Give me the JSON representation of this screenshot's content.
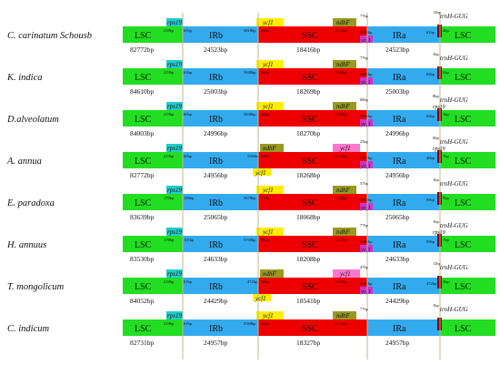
{
  "colors": {
    "lsc": "#22dd22",
    "ir": "#33aaee",
    "ssc": "#ee0000",
    "rps19": "#22cccc",
    "ycf1": "#ffee00",
    "ndhF": "#999922",
    "ycf1_pseudo": "#ff77cc",
    "ycf1_ira": "#cc33cc",
    "trnH": "#880000",
    "divider": "#c8b490"
  },
  "region_labels": {
    "lsc": "LSC",
    "irb": "IRb",
    "ssc": "SSC",
    "ira": "IRa"
  },
  "gene_labels": {
    "rps19": "rps19",
    "ycf1": "ycf1",
    "ndhF": "ndhF",
    "trnH": "trnH-GUG"
  },
  "species": [
    {
      "name": "C. carinatum Schousb",
      "lsc": "82772bp",
      "irb": "24523bp",
      "ssc": "18416bp",
      "ira": "24523bp",
      "rps19_left": "218bp",
      "rps19_right": "61bp",
      "ycf1_left": "5818bp",
      "ycf1_right": "86bp",
      "ndhF_left": "2213bp",
      "ndhF_right": "77bp",
      "ycf1_ira_left": "5338bp",
      "ycf1_ira_right": "61bp",
      "trnH_left": "13bp",
      "trnH_right": "4bp",
      "top": "",
      "ssc_pink": "",
      "trnH_below": false
    },
    {
      "name": "K. indica",
      "lsc": "84610bp",
      "irb": "25003bp",
      "ssc": "18269bp",
      "ira": "25003bp",
      "rps19_left": "219bp",
      "rps19_right": "63bp",
      "ycf1_left": "5848bp",
      "ycf1_right": "86bp",
      "ndhF_left": "2228bp",
      "ndhF_right": "77bp",
      "ycf1_ira_left": "5848bp",
      "ycf1_ira_right": "82bp",
      "trnH_left": "1bp",
      "trnH_right": "6bp",
      "top": "",
      "ssc_pink": "",
      "trnH_below": false
    },
    {
      "name": "D.alveolatum",
      "lsc": "84003bp",
      "irb": "24996bp",
      "ssc": "18270bp",
      "ira": "24996bp",
      "rps19_left": "219bp",
      "rps19_right": "60bp",
      "ycf1_left": "5848bp",
      "ycf1_right": "68bp",
      "ndhF_left": "2228bp",
      "ndhF_right": "68bp",
      "ycf1_ira_left": "5848bp",
      "ycf1_ira_right": "60bp",
      "trnH_left": "8bp",
      "trnH_right": "1bp",
      "top": "",
      "ssc_pink": "",
      "trnH_below": true
    },
    {
      "name": "A. annua",
      "lsc": "82772bp",
      "irb": "24956bp",
      "ssc": "18268bp",
      "ira": "24956bp",
      "rps19_left": "219bp",
      "rps19_right": "60bp",
      "ycf1_left": "5560bp",
      "ycf1_right": "62bp",
      "ndhF_left": "2213bp",
      "ndhF_right": "23bp",
      "ycf1_ira_left": "5173bp",
      "ycf1_ira_right": "40bp",
      "trnH_left": "0bp",
      "trnH_right": "7bp",
      "top": "A",
      "ssc_pink": "ycf1",
      "trnH_below": true
    },
    {
      "name": "E. paradoxa",
      "lsc": "83639bp",
      "irb": "25065bp",
      "ssc": "18068bp",
      "ira": "25065bp",
      "rps19_left": "178bp",
      "rps19_right": "100bp",
      "ycf1_left": "5678bp",
      "ycf1_right": "87bp",
      "ndhF_left": "2232bp",
      "ndhF_right": "57bp",
      "ycf1_ira_left": "5678bp",
      "ycf1_ira_right": "99bp",
      "trnH_left": "1bp",
      "trnH_right": "9bp",
      "top": "",
      "ssc_pink": "",
      "trnH_below": false
    },
    {
      "name": "H. annuus",
      "lsc": "83530bp",
      "irb": "24633bp",
      "ssc": "18208bp",
      "ira": "24633bp",
      "rps19_left": "178bp",
      "rps19_right": "101bp",
      "ycf1_left": "5768bp",
      "ycf1_right": "86bp",
      "ndhF_left": "2217bp",
      "ndhF_right": "77bp",
      "ycf1_ira_left": "5768bp",
      "ycf1_ira_right": "99bp",
      "trnH_left": "1bp",
      "trnH_right": "7bp",
      "top": "",
      "ssc_pink": "",
      "trnH_below": true
    },
    {
      "name": "T. mongolicum",
      "lsc": "84052bp",
      "irb": "24429bp",
      "ssc": "18541bp",
      "ira": "24429bp",
      "rps19_left": "218bp",
      "rps19_right": "61bp",
      "ycf1_left": "472bp",
      "ycf1_right": "19bp",
      "ndhF_left": "2210bp",
      "ndhF_right": "47bp",
      "ycf1_ira_left": "4953bp",
      "ycf1_ira_right": "472bp",
      "trnH_left": "11bp",
      "trnH_right": "5bp",
      "top": "T",
      "ssc_pink": "ycf1",
      "trnH_below": false
    },
    {
      "name": "C. indicum",
      "lsc": "82731bp",
      "irb": "24957bp",
      "ssc": "18327bp",
      "ira": "24957bp",
      "rps19_left": "218bp",
      "rps19_right": "61bp",
      "ycf1_left": "5568bp",
      "ycf1_right": "86bp",
      "ndhF_left": "2212bp",
      "ndhF_right": "77bp",
      "ycf1_ira_left": "",
      "ycf1_ira_right": "",
      "trnH_left": "1bp",
      "trnH_right": "",
      "top": "",
      "ssc_pink": "",
      "trnH_below": false
    }
  ]
}
